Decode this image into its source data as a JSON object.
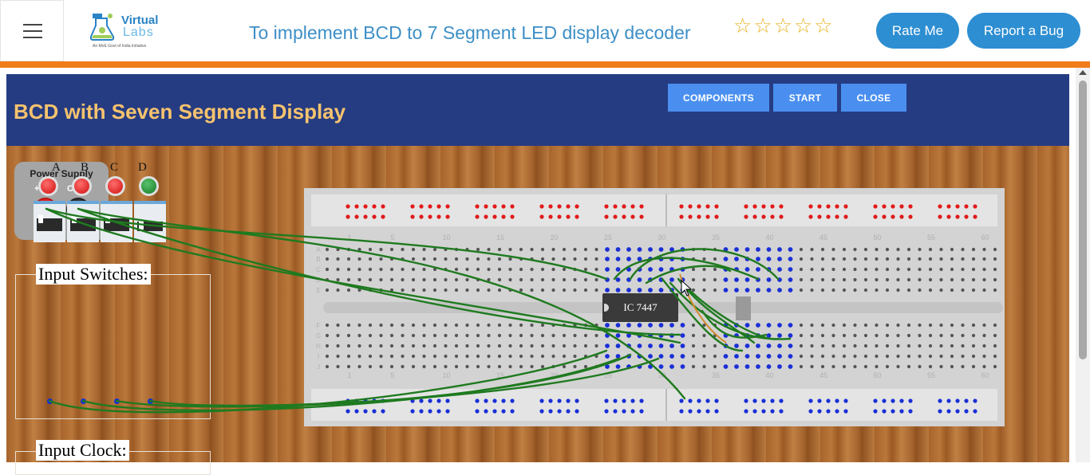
{
  "header": {
    "menu_icon": "hamburger-menu-icon",
    "logo": {
      "brand_line1": "Virtual",
      "brand_line2": "Labs",
      "tagline": "An MoE Govt of India Initiative"
    },
    "title": "To implement BCD to 7 Segment LED display decoder",
    "rating_stars": [
      "☆",
      "☆",
      "☆",
      "☆",
      "☆"
    ],
    "rate_label": "Rate Me",
    "bug_label": "Report a Bug"
  },
  "colors": {
    "accent": "#2d8ed2",
    "orange_bar": "#f07d1a",
    "sim_header": "#263c82",
    "sim_title": "#f6c36e",
    "sim_button": "#4a8fef"
  },
  "simulator": {
    "title": "BCD with Seven Segment Display",
    "buttons": {
      "components": "COMPONENTS",
      "start": "START",
      "close": "CLOSE"
    },
    "power_supply": {
      "title": "Power Supply",
      "plus_label": "+5 V",
      "com_label": "COM"
    },
    "input_switches": {
      "label": "Input Switches:",
      "switches": [
        {
          "letter": "A",
          "state": "off"
        },
        {
          "letter": "B",
          "state": "off"
        },
        {
          "letter": "C",
          "state": "off"
        },
        {
          "letter": "D",
          "state": "on"
        }
      ]
    },
    "input_clock": {
      "label": "Input Clock:"
    },
    "breadboard": {
      "column_numbers": [
        "1",
        "5",
        "10",
        "15",
        "20",
        "25",
        "30",
        "35",
        "40",
        "45",
        "50",
        "55",
        "60"
      ],
      "row_letters_top": [
        "A",
        "B",
        "C",
        "D",
        "E"
      ],
      "row_letters_bottom": [
        "F",
        "G",
        "H",
        "I",
        "J"
      ]
    },
    "ic_label": "IC 7447"
  }
}
